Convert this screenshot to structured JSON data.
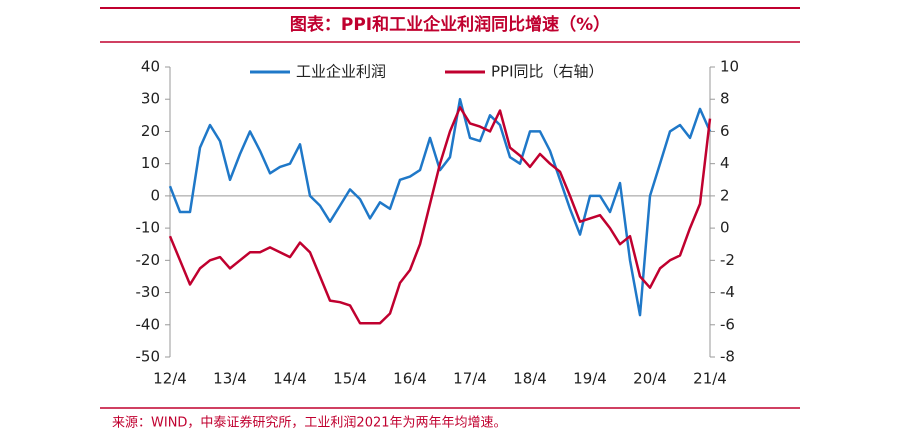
{
  "chart_data": {
    "type": "line",
    "title": "图表：PPI和工业企业利润同比增速（%）",
    "source": "来源：WIND，中泰证券研究所，工业利润2021年为两年年均增速。",
    "categories": [
      "12/4",
      null,
      null,
      null,
      null,
      null,
      "13/4",
      null,
      null,
      null,
      null,
      null,
      "14/4",
      null,
      null,
      null,
      null,
      null,
      "15/4",
      null,
      null,
      null,
      null,
      null,
      "16/4",
      null,
      null,
      null,
      null,
      null,
      "17/4",
      null,
      null,
      null,
      null,
      null,
      "18/4",
      null,
      null,
      null,
      null,
      null,
      "19/4",
      null,
      null,
      null,
      null,
      null,
      "20/4",
      null,
      null,
      null,
      null,
      null,
      "21/4"
    ],
    "series": [
      {
        "name": "工业企业利润",
        "color": "#1f78c8",
        "axis": "y",
        "values": [
          3,
          -5,
          -5,
          15,
          22,
          17,
          5,
          13,
          20,
          14,
          7,
          9,
          10,
          16,
          0,
          -3,
          -8,
          -3,
          2,
          -1,
          -7,
          -2,
          -4,
          5,
          6,
          8,
          18,
          8,
          12,
          30,
          18,
          17,
          25,
          22,
          12,
          10,
          20,
          20,
          14,
          5,
          -4,
          -12,
          0,
          0,
          -5,
          4,
          -20,
          -37,
          0,
          10,
          20,
          22,
          18,
          27,
          20
        ]
      },
      {
        "name": "PPI同比（右轴）",
        "color": "#c0002f",
        "axis": "y2",
        "values": [
          -0.5,
          -2,
          -3.5,
          -2.5,
          -2,
          -1.8,
          -2.5,
          -2,
          -1.5,
          -1.5,
          -1.2,
          -1.5,
          -1.8,
          -0.9,
          -1.5,
          -3,
          -4.5,
          -4.6,
          -4.8,
          -5.9,
          -5.9,
          -5.9,
          -5.3,
          -3.4,
          -2.6,
          -1,
          1.5,
          4,
          6,
          7.5,
          6.5,
          6.3,
          6,
          7.3,
          5,
          4.5,
          3.8,
          4.6,
          4,
          3.5,
          2,
          0.4,
          0.6,
          0.8,
          0,
          -1,
          -0.5,
          -3,
          -3.7,
          -2.5,
          -2,
          -1.7,
          0,
          1.5,
          6.8
        ]
      }
    ],
    "ylim": [
      -50,
      40
    ],
    "yticks": [
      -50,
      -40,
      -30,
      -20,
      -10,
      0,
      10,
      20,
      30,
      40
    ],
    "y2lim": [
      -8,
      10
    ],
    "y2ticks": [
      -8,
      -6,
      -4,
      -2,
      0,
      2,
      4,
      6,
      8,
      10
    ]
  }
}
